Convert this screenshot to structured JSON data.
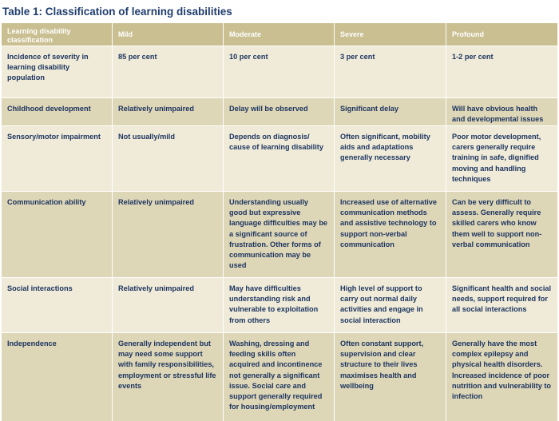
{
  "title": "Table 1: Classification of learning disabilities",
  "colors": {
    "header_bg": "#c9bf91",
    "row_light": "#efebd8",
    "row_dark": "#ddd6b7",
    "text": "#1e3560",
    "title": "#1f3d6d"
  },
  "headers": [
    "Learning disability classification",
    "Mild",
    "Moderate",
    "Severe",
    "Profound"
  ],
  "rows": [
    {
      "label": "Incidence of severity in learning disability population",
      "cells": [
        "85 per cent",
        "10 per cent",
        "3 per cent",
        "1-2 per cent"
      ]
    },
    {
      "label": "Childhood development",
      "cells": [
        "Relatively unimpaired",
        "Delay will be observed",
        "Significant delay",
        "Will have obvious health and developmental issues"
      ]
    },
    {
      "label": "Sensory/motor impairment",
      "cells": [
        "Not usually/mild",
        "Depends on diagnosis/ cause of learning disability",
        "Often significant, mobility aids and adaptations generally necessary",
        "Poor motor development, carers generally require training in safe, dignified moving and handling techniques"
      ]
    },
    {
      "label": "Communication ability",
      "cells": [
        "Relatively unimpaired",
        "Understanding usually good but expressive language difficulties may be a significant source of frustration. Other forms of communication may be used",
        "Increased use of alternative communication methods and assistive technology to support non-verbal communication",
        "Can be very difficult to assess. Generally require skilled carers who know them well to support non-verbal communication"
      ]
    },
    {
      "label": "Social interactions",
      "cells": [
        "Relatively unimpaired",
        "May have difficulties understanding risk and vulnerable to exploitation from others",
        "High level of support to carry out normal daily activities and engage in social interaction",
        "Significant health and social needs, support required for all social interactions"
      ]
    },
    {
      "label": "Independence",
      "cells": [
        "Generally independent but may need some support with family responsibilities, employment or stressful life events",
        "Washing, dressing and feeding skills often acquired and incontinence not generally a significant issue. Social care and support generally required for housing/employment",
        "Often constant support, supervision and clear structure to their lives maximises health and wellbeing",
        "Generally have the most complex epilepsy and physical health disorders. Increased incidence of poor nutrition and vulnerability to infection"
      ]
    }
  ]
}
